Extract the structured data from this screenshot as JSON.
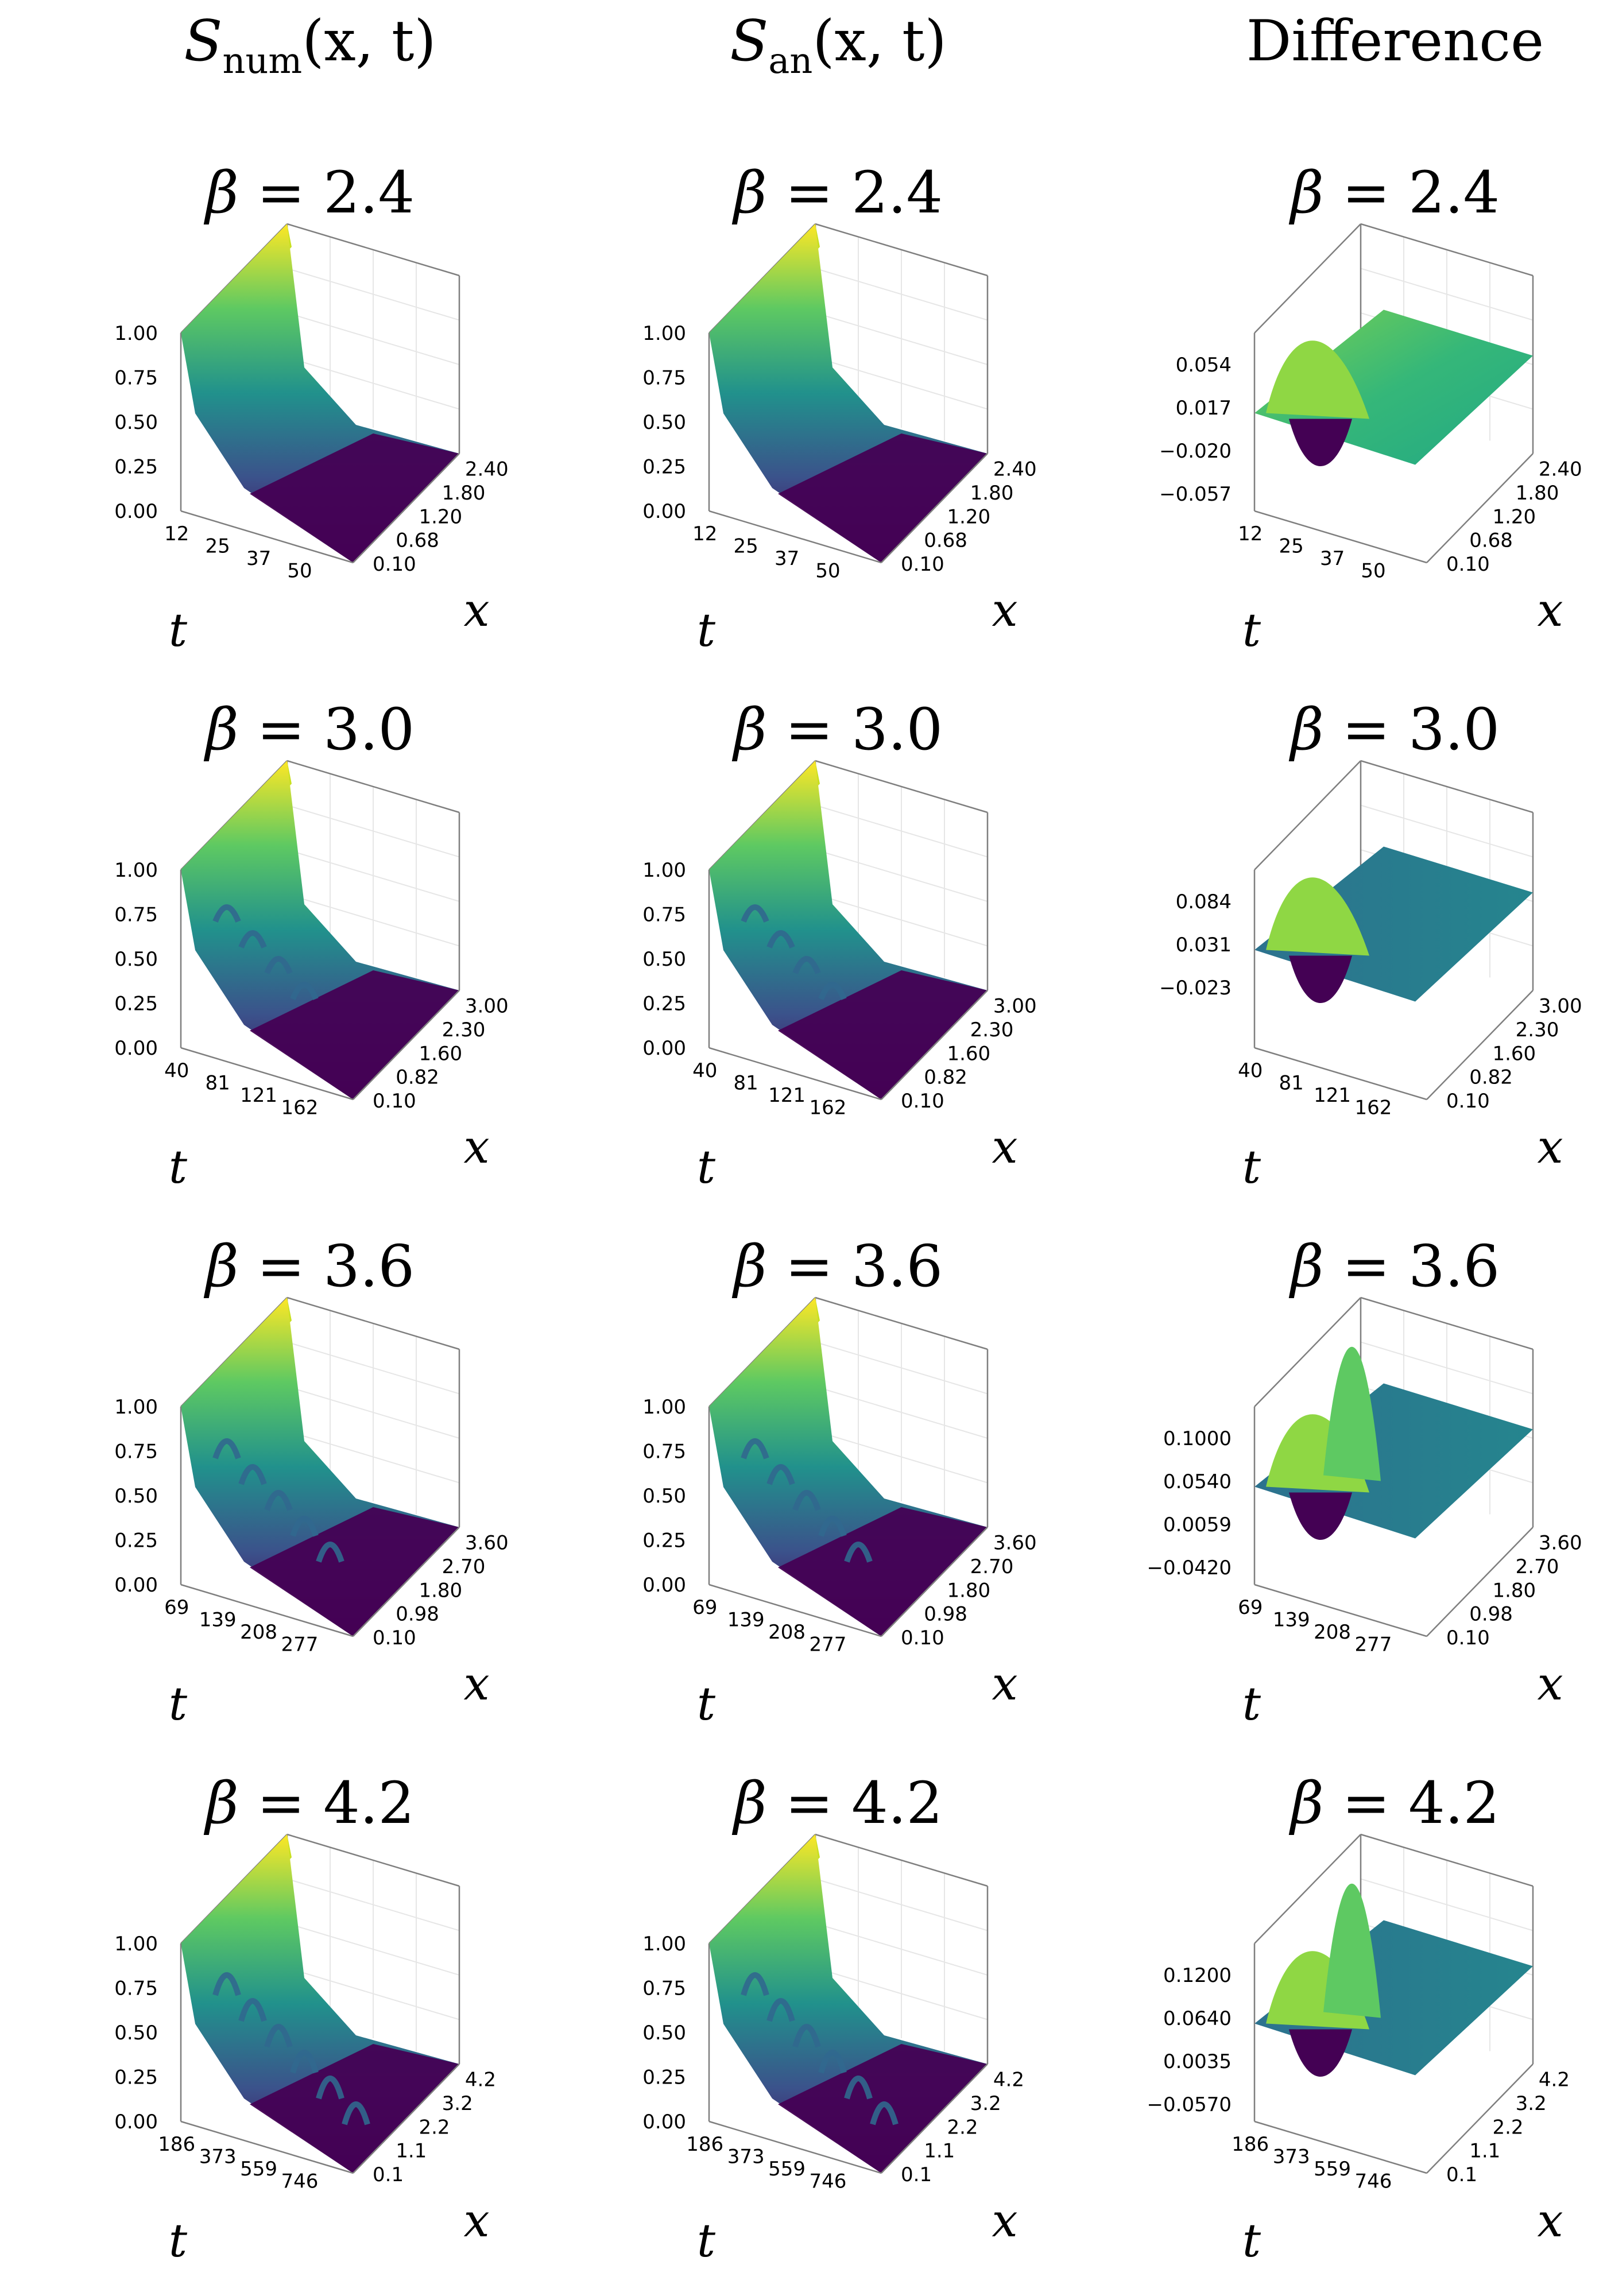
{
  "columns": [
    {
      "title": "S_num(x, t)",
      "sym": "S",
      "sub": "num",
      "args": "(x, t)"
    },
    {
      "title": "S_an(x, t)",
      "sym": "S",
      "sub": "an",
      "args": "(x, t)"
    },
    {
      "title": "Difference"
    }
  ],
  "beta_symbol": "β",
  "rows": [
    {
      "beta_label": "= 2.4",
      "t_ticks": [
        "12",
        "25",
        "37",
        "50"
      ],
      "x_ticks": [
        "0.10",
        "0.68",
        "1.20",
        "1.80",
        "2.40"
      ],
      "diff_z_ticks": [
        "0.054",
        "0.017",
        "−0.020",
        "−0.057"
      ]
    },
    {
      "beta_label": "= 3.0",
      "t_ticks": [
        "40",
        "81",
        "121",
        "162"
      ],
      "x_ticks": [
        "0.10",
        "0.82",
        "1.60",
        "2.30",
        "3.00"
      ],
      "diff_z_ticks": [
        "0.084",
        "0.031",
        "−0.023"
      ]
    },
    {
      "beta_label": "= 3.6",
      "t_ticks": [
        "69",
        "139",
        "208",
        "277"
      ],
      "x_ticks": [
        "0.10",
        "0.98",
        "1.80",
        "2.70",
        "3.60"
      ],
      "diff_z_ticks": [
        "0.1000",
        "0.0540",
        "0.0059",
        "−0.0420"
      ]
    },
    {
      "beta_label": "= 4.2",
      "t_ticks": [
        "186",
        "373",
        "559",
        "746"
      ],
      "x_ticks": [
        "0.1",
        "1.1",
        "2.2",
        "3.2",
        "4.2"
      ],
      "diff_z_ticks": [
        "0.1200",
        "0.0640",
        "0.0035",
        "−0.0570"
      ]
    }
  ],
  "z_ticks_main": [
    "1.00",
    "0.75",
    "0.50",
    "0.25",
    "0.00"
  ],
  "axis_labels": {
    "t": "t",
    "x": "x"
  },
  "chart_data": {
    "type": "surface-grid",
    "colormap": "viridis",
    "panels": [
      {
        "column": "S_num(x, t)",
        "beta": 2.4,
        "t_range": [
          12,
          50
        ],
        "x_range": [
          0.1,
          2.4
        ],
        "z_range": [
          0.0,
          1.0
        ]
      },
      {
        "column": "S_an(x, t)",
        "beta": 2.4,
        "t_range": [
          12,
          50
        ],
        "x_range": [
          0.1,
          2.4
        ],
        "z_range": [
          0.0,
          1.0
        ]
      },
      {
        "column": "Difference",
        "beta": 2.4,
        "t_range": [
          12,
          50
        ],
        "x_range": [
          0.1,
          2.4
        ],
        "z_range": [
          -0.057,
          0.054
        ]
      },
      {
        "column": "S_num(x, t)",
        "beta": 3.0,
        "t_range": [
          40,
          162
        ],
        "x_range": [
          0.1,
          3.0
        ],
        "z_range": [
          0.0,
          1.0
        ]
      },
      {
        "column": "S_an(x, t)",
        "beta": 3.0,
        "t_range": [
          40,
          162
        ],
        "x_range": [
          0.1,
          3.0
        ],
        "z_range": [
          0.0,
          1.0
        ]
      },
      {
        "column": "Difference",
        "beta": 3.0,
        "t_range": [
          40,
          162
        ],
        "x_range": [
          0.1,
          3.0
        ],
        "z_range": [
          -0.023,
          0.084
        ]
      },
      {
        "column": "S_num(x, t)",
        "beta": 3.6,
        "t_range": [
          69,
          277
        ],
        "x_range": [
          0.1,
          3.6
        ],
        "z_range": [
          0.0,
          1.0
        ]
      },
      {
        "column": "S_an(x, t)",
        "beta": 3.6,
        "t_range": [
          69,
          277
        ],
        "x_range": [
          0.1,
          3.6
        ],
        "z_range": [
          0.0,
          1.0
        ]
      },
      {
        "column": "Difference",
        "beta": 3.6,
        "t_range": [
          69,
          277
        ],
        "x_range": [
          0.1,
          3.6
        ],
        "z_range": [
          -0.042,
          0.1
        ]
      },
      {
        "column": "S_num(x, t)",
        "beta": 4.2,
        "t_range": [
          186,
          746
        ],
        "x_range": [
          0.1,
          4.2
        ],
        "z_range": [
          0.0,
          1.0
        ]
      },
      {
        "column": "S_an(x, t)",
        "beta": 4.2,
        "t_range": [
          186,
          746
        ],
        "x_range": [
          0.1,
          4.2
        ],
        "z_range": [
          0.0,
          1.0
        ]
      },
      {
        "column": "Difference",
        "beta": 4.2,
        "t_range": [
          186,
          746
        ],
        "x_range": [
          0.1,
          4.2
        ],
        "z_range": [
          -0.057,
          0.12
        ]
      }
    ]
  }
}
